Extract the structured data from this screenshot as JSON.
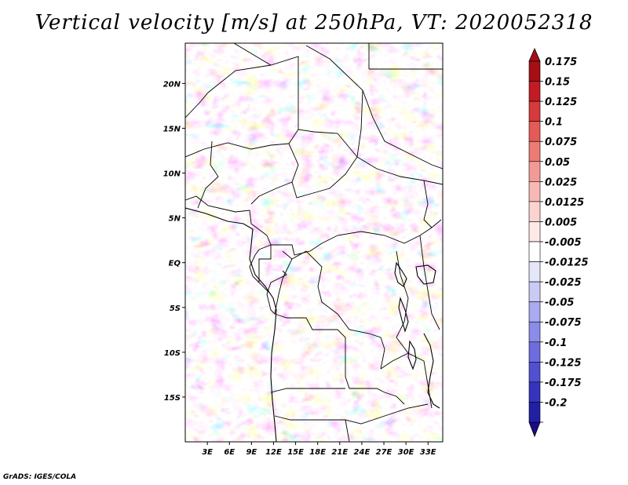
{
  "title": "Vertical velocity [m/s] at 250hPa, VT: 2020052318",
  "footer": "GrADS: IGES/COLA",
  "map": {
    "variable": "Vertical velocity",
    "units": "m/s",
    "level": "250hPa",
    "valid_time": "2020052318",
    "lon_range": [
      0,
      35
    ],
    "lat_range": [
      -20,
      24.5
    ],
    "lon_ticks": [
      {
        "value": 3,
        "label": "3E"
      },
      {
        "value": 6,
        "label": "6E"
      },
      {
        "value": 9,
        "label": "9E"
      },
      {
        "value": 12,
        "label": "12E"
      },
      {
        "value": 15,
        "label": "15E"
      },
      {
        "value": 18,
        "label": "18E"
      },
      {
        "value": 21,
        "label": "21E"
      },
      {
        "value": 24,
        "label": "24E"
      },
      {
        "value": 27,
        "label": "27E"
      },
      {
        "value": 30,
        "label": "30E"
      },
      {
        "value": 33,
        "label": "33E"
      }
    ],
    "lat_ticks": [
      {
        "value": 20,
        "label": "20N"
      },
      {
        "value": 15,
        "label": "15N"
      },
      {
        "value": 10,
        "label": "10N"
      },
      {
        "value": 5,
        "label": "5N"
      },
      {
        "value": 0,
        "label": "EQ"
      },
      {
        "value": -5,
        "label": "5S"
      },
      {
        "value": -10,
        "label": "10S"
      },
      {
        "value": -15,
        "label": "15S"
      }
    ]
  },
  "colorbar": {
    "top_arrow_color": "#a50f15",
    "bottom_arrow_color": "#1a0a8c",
    "levels": [
      {
        "label": "0.175",
        "color": "#a50f15"
      },
      {
        "label": "0.15",
        "color": "#c21b24"
      },
      {
        "label": "0.125",
        "color": "#d63a3a"
      },
      {
        "label": "0.1",
        "color": "#e35a57"
      },
      {
        "label": "0.075",
        "color": "#ec7b76"
      },
      {
        "label": "0.05",
        "color": "#f29b96"
      },
      {
        "label": "0.025",
        "color": "#f7b9b5"
      },
      {
        "label": "0.0125",
        "color": "#fbd3d1"
      },
      {
        "label": "0.005",
        "color": "#fde9e8"
      },
      {
        "label": "-0.005",
        "color": "#ffffff"
      },
      {
        "label": "-0.0125",
        "color": "#e6e6fb"
      },
      {
        "label": "-0.025",
        "color": "#cacaf5"
      },
      {
        "label": "-0.05",
        "color": "#aaaaf0"
      },
      {
        "label": "-0.075",
        "color": "#8b8be8"
      },
      {
        "label": "-0.1",
        "color": "#6d6ddd"
      },
      {
        "label": "-0.125",
        "color": "#5050d0"
      },
      {
        "label": "-0.175",
        "color": "#3434be"
      },
      {
        "label": "-0.2",
        "color": "#2020a5"
      }
    ]
  }
}
